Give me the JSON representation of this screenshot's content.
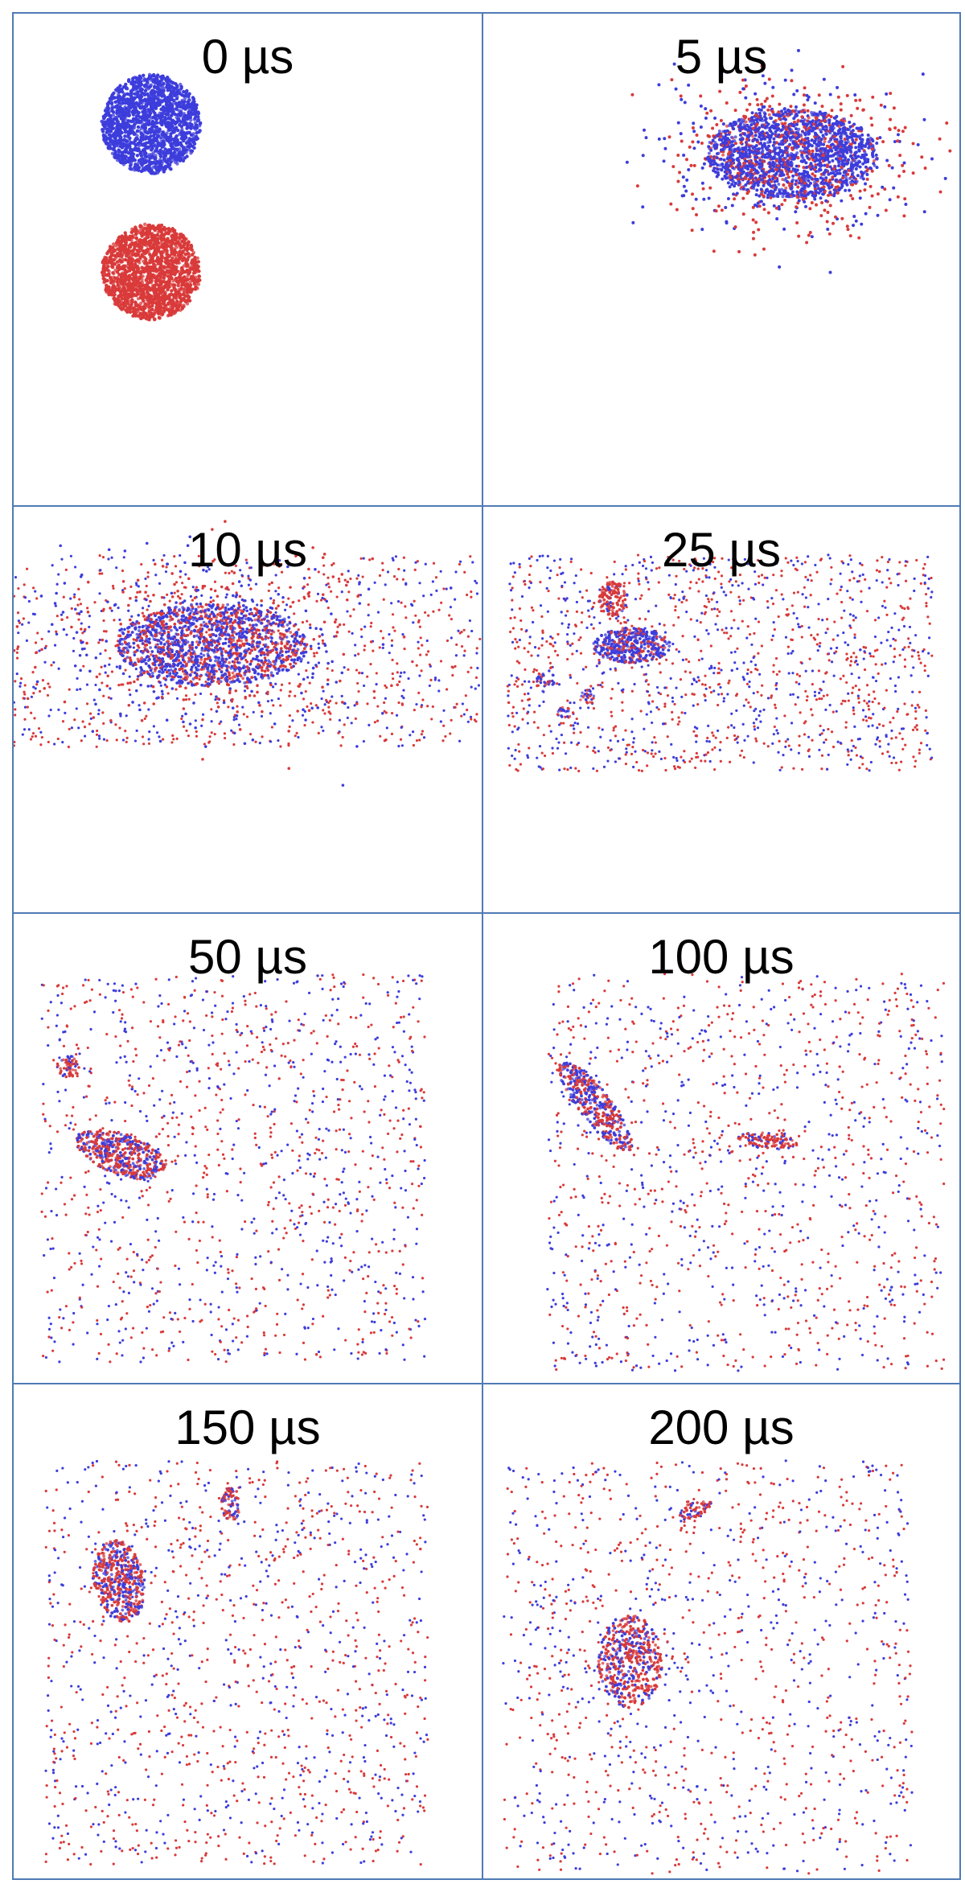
{
  "colors": {
    "blue": "#3d3ddc",
    "red": "#d93a3a",
    "border": "#4f7bb5"
  },
  "panels": [
    {
      "label": "0 µs"
    },
    {
      "label": "5 µs"
    },
    {
      "label": "10 µs"
    },
    {
      "label": "25 µs"
    },
    {
      "label": "50 µs"
    },
    {
      "label": "100 µs"
    },
    {
      "label": "150 µs"
    },
    {
      "label": "200 µs"
    }
  ]
}
